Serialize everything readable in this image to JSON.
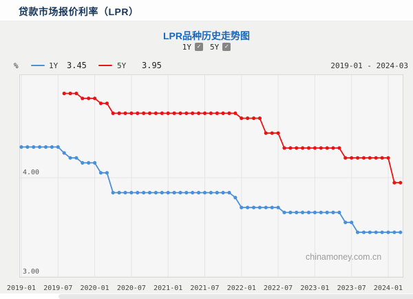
{
  "window": {
    "title": "贷款市场报价利率（LPR）"
  },
  "chart": {
    "title": "LPR品种历史走势图",
    "controls": [
      {
        "label": "1Y",
        "checked": true
      },
      {
        "label": "5Y",
        "checked": true
      }
    ],
    "unit_label": "%",
    "date_range": "2019-01 - 2024-03",
    "watermark": "chinamoney.com.cn",
    "legend": [
      {
        "name": "1Y",
        "current": "3.45",
        "color": "#4a90d9"
      },
      {
        "name": "5Y",
        "current": "3.95",
        "color": "#e81414"
      }
    ],
    "colors": {
      "title_blue": "#1a66b8",
      "header_navy": "#17365a"
    }
  },
  "chart_data": {
    "type": "line",
    "title": "LPR品种历史走势图",
    "ylabel": "%",
    "ylim": [
      2.99,
      5.04
    ],
    "yticks": [
      4.0,
      3.0
    ],
    "xticks": [
      "2019-01",
      "2019-07",
      "2020-01",
      "2020-07",
      "2021-01",
      "2021-07",
      "2022-01",
      "2022-07",
      "2023-01",
      "2023-07",
      "2024-01"
    ],
    "grid": true,
    "legend_position": "top-left",
    "x": [
      "2019-01",
      "2019-02",
      "2019-03",
      "2019-04",
      "2019-05",
      "2019-06",
      "2019-07",
      "2019-08",
      "2019-09",
      "2019-10",
      "2019-11",
      "2019-12",
      "2020-01",
      "2020-02",
      "2020-03",
      "2020-04",
      "2020-05",
      "2020-06",
      "2020-07",
      "2020-08",
      "2020-09",
      "2020-10",
      "2020-11",
      "2020-12",
      "2021-01",
      "2021-02",
      "2021-03",
      "2021-04",
      "2021-05",
      "2021-06",
      "2021-07",
      "2021-08",
      "2021-09",
      "2021-10",
      "2021-11",
      "2021-12",
      "2022-01",
      "2022-02",
      "2022-03",
      "2022-04",
      "2022-05",
      "2022-06",
      "2022-07",
      "2022-08",
      "2022-09",
      "2022-10",
      "2022-11",
      "2022-12",
      "2023-01",
      "2023-02",
      "2023-03",
      "2023-04",
      "2023-05",
      "2023-06",
      "2023-07",
      "2023-08",
      "2023-09",
      "2023-10",
      "2023-11",
      "2023-12",
      "2024-01",
      "2024-02",
      "2024-03"
    ],
    "series": [
      {
        "name": "1Y",
        "color": "#4a90d9",
        "values": [
          4.31,
          4.31,
          4.31,
          4.31,
          4.31,
          4.31,
          4.31,
          4.25,
          4.2,
          4.2,
          4.15,
          4.15,
          4.15,
          4.05,
          4.05,
          3.85,
          3.85,
          3.85,
          3.85,
          3.85,
          3.85,
          3.85,
          3.85,
          3.85,
          3.85,
          3.85,
          3.85,
          3.85,
          3.85,
          3.85,
          3.85,
          3.85,
          3.85,
          3.85,
          3.85,
          3.8,
          3.7,
          3.7,
          3.7,
          3.7,
          3.7,
          3.7,
          3.7,
          3.65,
          3.65,
          3.65,
          3.65,
          3.65,
          3.65,
          3.65,
          3.65,
          3.65,
          3.65,
          3.55,
          3.55,
          3.45,
          3.45,
          3.45,
          3.45,
          3.45,
          3.45,
          3.45,
          3.45
        ]
      },
      {
        "name": "5Y",
        "color": "#e81414",
        "values": [
          null,
          null,
          null,
          null,
          null,
          null,
          null,
          4.85,
          4.85,
          4.85,
          4.8,
          4.8,
          4.8,
          4.75,
          4.75,
          4.65,
          4.65,
          4.65,
          4.65,
          4.65,
          4.65,
          4.65,
          4.65,
          4.65,
          4.65,
          4.65,
          4.65,
          4.65,
          4.65,
          4.65,
          4.65,
          4.65,
          4.65,
          4.65,
          4.65,
          4.65,
          4.6,
          4.6,
          4.6,
          4.6,
          4.45,
          4.45,
          4.45,
          4.3,
          4.3,
          4.3,
          4.3,
          4.3,
          4.3,
          4.3,
          4.3,
          4.3,
          4.3,
          4.2,
          4.2,
          4.2,
          4.2,
          4.2,
          4.2,
          4.2,
          4.2,
          3.95,
          3.95
        ]
      }
    ]
  }
}
